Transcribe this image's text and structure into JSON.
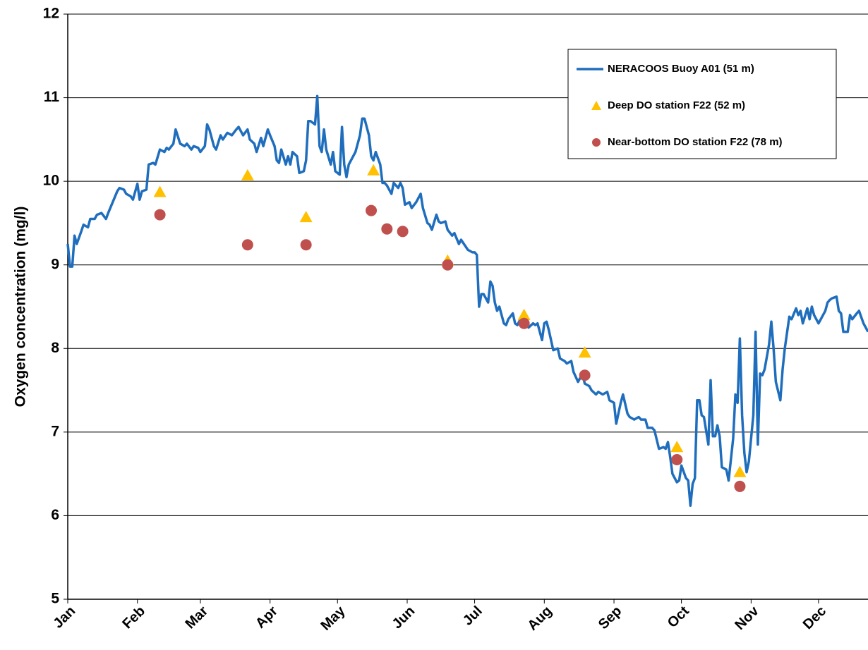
{
  "chart_data": {
    "type": "line",
    "y_label": "Oxygen concentration (mg/l)",
    "xlim": [
      0,
      356
    ],
    "ylim": [
      5,
      12
    ],
    "xticks": [
      {
        "value": 0,
        "label": "Jan"
      },
      {
        "value": 31,
        "label": "Feb"
      },
      {
        "value": 59,
        "label": "Mar"
      },
      {
        "value": 90,
        "label": "Apr"
      },
      {
        "value": 120,
        "label": "May"
      },
      {
        "value": 151,
        "label": "Jun"
      },
      {
        "value": 181,
        "label": "Jul"
      },
      {
        "value": 212,
        "label": "Aug"
      },
      {
        "value": 243,
        "label": "Sep"
      },
      {
        "value": 273,
        "label": "Oct"
      },
      {
        "value": 304,
        "label": "Nov"
      },
      {
        "value": 334,
        "label": "Dec"
      }
    ],
    "yticks": [
      5,
      6,
      7,
      8,
      9,
      10,
      11,
      12
    ],
    "grid": true,
    "legend": "upper right",
    "series": [
      {
        "name": "NERACOOS Buoy A01 (51 m)",
        "type": "line",
        "color": "#1f6ebd",
        "x": [
          0,
          1,
          2,
          3,
          4,
          6,
          7,
          9,
          10,
          12,
          13,
          15,
          17,
          18,
          20,
          22,
          23,
          25,
          26,
          28,
          29,
          31,
          32,
          33,
          35,
          36,
          38,
          39,
          41,
          43,
          44,
          45,
          47,
          48,
          50,
          52,
          53,
          55,
          56,
          58,
          59,
          61,
          62,
          63,
          65,
          66,
          68,
          69,
          71,
          73,
          75,
          76,
          78,
          80,
          81,
          83,
          84,
          86,
          87,
          89,
          90,
          92,
          93,
          94,
          95,
          97,
          98,
          99,
          100,
          102,
          103,
          105,
          106,
          107,
          108,
          110,
          111,
          112,
          113,
          114,
          115,
          117,
          118,
          119,
          121,
          122,
          123,
          124,
          125,
          127,
          128,
          130,
          131,
          132,
          134,
          135,
          136,
          137,
          139,
          140,
          141,
          142,
          144,
          145,
          147,
          148,
          149,
          150,
          152,
          153,
          155,
          157,
          158,
          160,
          161,
          162,
          164,
          165,
          166,
          168,
          169,
          171,
          172,
          174,
          175,
          177,
          178,
          180,
          181,
          182,
          183,
          184,
          185,
          187,
          188,
          189,
          190,
          191,
          192,
          194,
          195,
          196,
          198,
          199,
          200,
          202,
          203,
          205,
          207,
          208,
          209,
          211,
          212,
          213,
          214,
          216,
          218,
          219,
          221,
          222,
          224,
          225,
          227,
          229,
          230,
          232,
          233,
          235,
          236,
          238,
          240,
          241,
          243,
          244,
          246,
          247,
          249,
          250,
          252,
          254,
          255,
          257,
          258,
          260,
          261,
          263,
          265,
          266,
          267,
          268,
          269,
          271,
          272,
          273,
          275,
          276,
          277,
          278,
          279,
          280,
          281,
          282,
          283,
          285,
          286,
          287,
          288,
          289,
          290,
          291,
          293,
          294,
          296,
          297,
          298,
          299,
          300,
          301,
          302,
          303,
          305,
          306,
          307,
          308,
          309,
          310,
          312,
          313,
          314,
          315,
          317,
          318,
          319,
          321,
          322,
          324,
          325,
          326,
          327,
          329,
          330,
          331,
          332,
          334,
          335,
          337,
          338,
          339,
          340,
          342,
          343,
          344,
          345,
          347,
          348,
          349,
          351,
          352,
          354,
          356
        ],
        "values": [
          9.25,
          8.98,
          8.98,
          9.35,
          9.25,
          9.4,
          9.48,
          9.45,
          9.55,
          9.55,
          9.6,
          9.62,
          9.55,
          9.62,
          9.75,
          9.88,
          9.92,
          9.9,
          9.85,
          9.82,
          9.78,
          9.97,
          9.78,
          9.88,
          9.9,
          10.2,
          10.22,
          10.2,
          10.38,
          10.35,
          10.4,
          10.38,
          10.45,
          10.62,
          10.45,
          10.42,
          10.45,
          10.38,
          10.42,
          10.4,
          10.35,
          10.42,
          10.68,
          10.62,
          10.42,
          10.38,
          10.55,
          10.5,
          10.58,
          10.55,
          10.62,
          10.65,
          10.55,
          10.62,
          10.5,
          10.45,
          10.35,
          10.52,
          10.42,
          10.62,
          10.55,
          10.42,
          10.25,
          10.22,
          10.38,
          10.2,
          10.3,
          10.2,
          10.35,
          10.3,
          10.1,
          10.12,
          10.25,
          10.72,
          10.72,
          10.68,
          11.02,
          10.42,
          10.35,
          10.62,
          10.38,
          10.2,
          10.35,
          10.12,
          10.08,
          10.65,
          10.2,
          10.05,
          10.2,
          10.3,
          10.35,
          10.55,
          10.75,
          10.75,
          10.55,
          10.3,
          10.25,
          10.35,
          10.2,
          9.98,
          9.98,
          9.95,
          9.85,
          9.98,
          9.92,
          9.98,
          9.92,
          9.72,
          9.75,
          9.68,
          9.75,
          9.85,
          9.68,
          9.5,
          9.48,
          9.42,
          9.6,
          9.52,
          9.5,
          9.52,
          9.42,
          9.35,
          9.38,
          9.25,
          9.3,
          9.22,
          9.18,
          9.15,
          9.15,
          9.12,
          8.5,
          8.65,
          8.65,
          8.55,
          8.8,
          8.75,
          8.55,
          8.45,
          8.5,
          8.3,
          8.28,
          8.35,
          8.42,
          8.3,
          8.28,
          8.38,
          8.32,
          8.25,
          8.3,
          8.28,
          8.3,
          8.1,
          8.3,
          8.32,
          8.22,
          7.98,
          8.0,
          7.88,
          7.85,
          7.82,
          7.85,
          7.72,
          7.6,
          7.7,
          7.58,
          7.55,
          7.5,
          7.45,
          7.48,
          7.45,
          7.48,
          7.38,
          7.35,
          7.1,
          7.35,
          7.45,
          7.22,
          7.18,
          7.15,
          7.18,
          7.15,
          7.15,
          7.05,
          7.05,
          7.02,
          6.8,
          6.82,
          6.8,
          6.88,
          6.7,
          6.5,
          6.4,
          6.42,
          6.6,
          6.45,
          6.42,
          6.12,
          6.38,
          6.45,
          7.38,
          7.38,
          7.2,
          7.18,
          6.85,
          7.62,
          6.95,
          6.95,
          7.08,
          6.95,
          6.58,
          6.55,
          6.42,
          6.92,
          7.45,
          7.35,
          8.12,
          7.2,
          6.75,
          6.52,
          6.65,
          7.2,
          8.2,
          6.85,
          7.7,
          7.68,
          7.75,
          8.05,
          8.32,
          8.0,
          7.6,
          7.38,
          7.75,
          8.0,
          8.38,
          8.35,
          8.48,
          8.4,
          8.45,
          8.3,
          8.48,
          8.35,
          8.5,
          8.4,
          8.3,
          8.35,
          8.45,
          8.55,
          8.58,
          8.6,
          8.62,
          8.45,
          8.42,
          8.2,
          8.2,
          8.4,
          8.35,
          8.42,
          8.45,
          8.3,
          8.2
        ]
      },
      {
        "name": "Deep DO station F22 (52 m)",
        "type": "scatter",
        "marker": "triangle",
        "color": "#ffc000",
        "x": [
          41,
          80,
          106,
          136,
          169,
          203,
          230,
          271,
          299
        ],
        "values": [
          9.87,
          10.07,
          9.57,
          10.13,
          9.05,
          8.4,
          7.95,
          6.82,
          6.52
        ]
      },
      {
        "name": "Near-bottom DO station F22 (78 m)",
        "type": "scatter",
        "marker": "circle",
        "color": "#c0504d",
        "x": [
          41,
          80,
          106,
          135,
          142,
          149,
          169,
          203,
          230,
          271,
          299
        ],
        "values": [
          9.6,
          9.24,
          9.24,
          9.65,
          9.43,
          9.4,
          9.0,
          8.3,
          7.68,
          6.67,
          6.35
        ]
      }
    ]
  }
}
